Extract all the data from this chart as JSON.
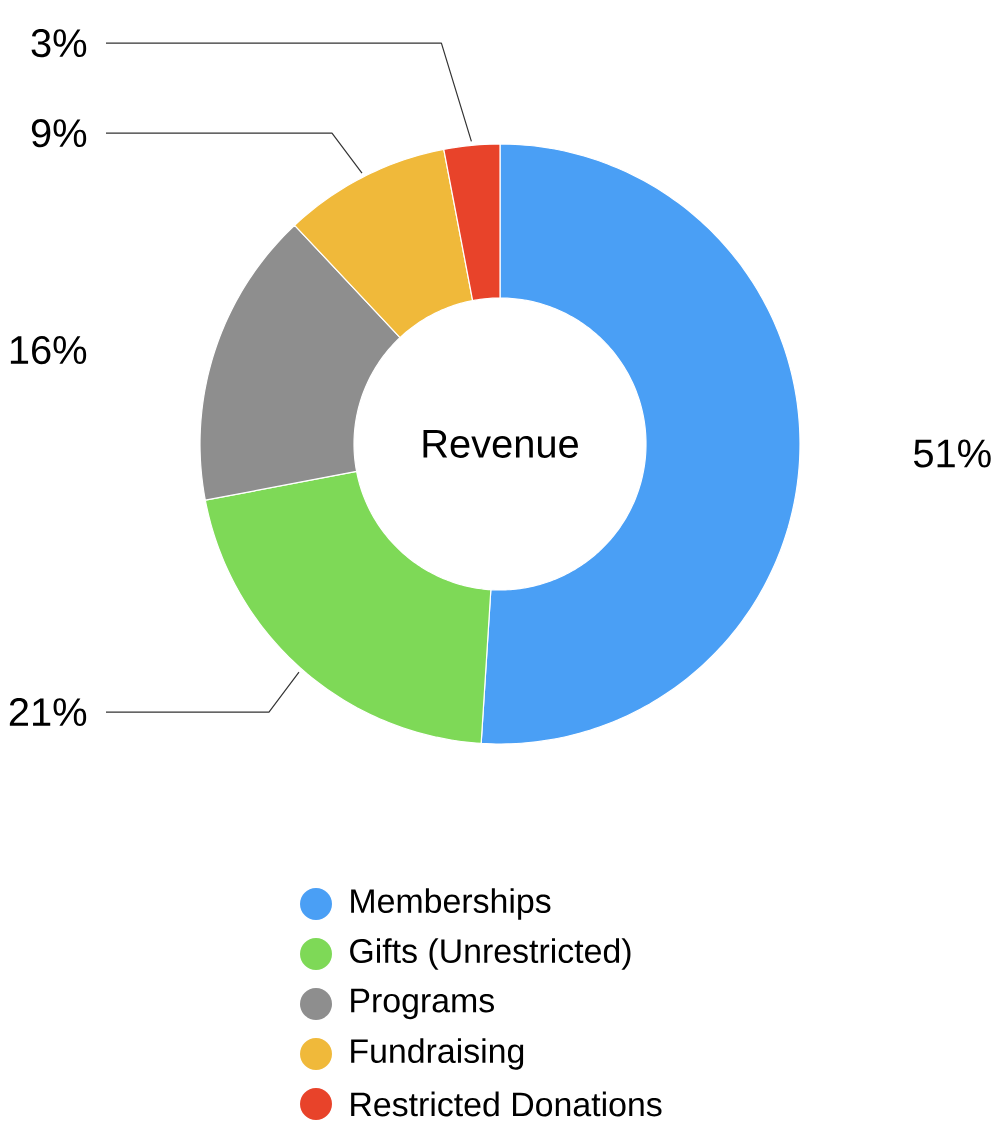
{
  "chart_data": {
    "type": "donut",
    "title": "Revenue",
    "categories": [
      "Memberships",
      "Gifts (Unrestricted)",
      "Programs",
      "Fundraising",
      "Restricted Donations"
    ],
    "values": [
      51,
      21,
      16,
      9,
      3
    ],
    "value_labels": [
      "51%",
      "21%",
      "16%",
      "9%",
      "3%"
    ],
    "colors": [
      "#4a9ff5",
      "#7ed957",
      "#8e8e8e",
      "#f0b93a",
      "#e8432a"
    ],
    "legend": "bottom"
  }
}
